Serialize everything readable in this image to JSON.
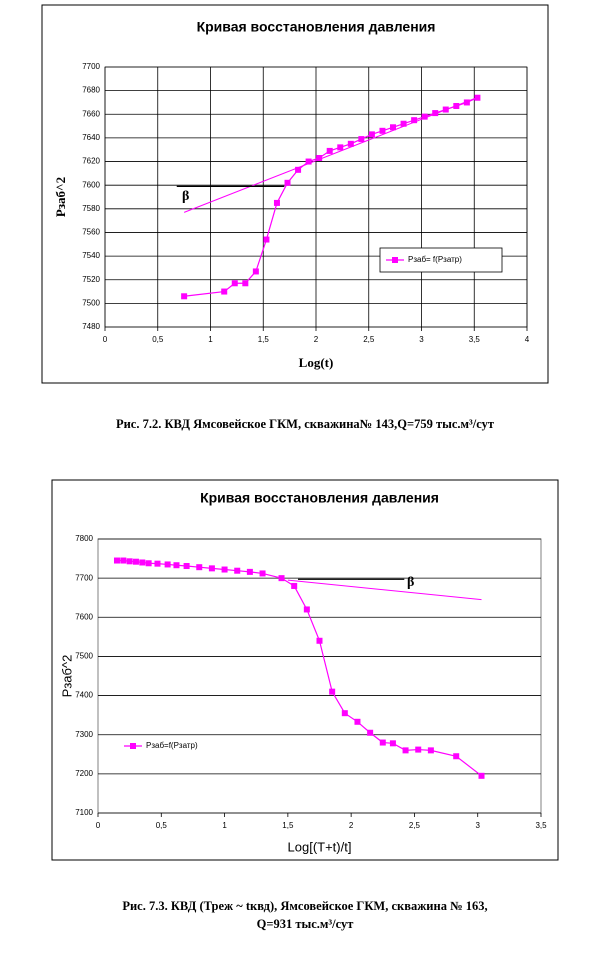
{
  "chart_data": [
    {
      "type": "line",
      "title": "Кривая восстановления давления",
      "x_label": "Log(t)",
      "y_label": "Pзаб^2",
      "x": [
        0.75,
        1.13,
        1.23,
        1.33,
        1.43,
        1.53,
        1.63,
        1.73,
        1.83,
        1.93,
        2.03,
        2.13,
        2.23,
        2.33,
        2.43,
        2.53,
        2.63,
        2.73,
        2.83,
        2.93,
        3.03,
        3.13,
        3.23,
        3.33,
        3.43,
        3.53
      ],
      "series": [
        {
          "name": "Pзаб= f(Pзатр)",
          "color": "#ff00ff",
          "values": [
            7506,
            7510,
            7517,
            7517,
            7527,
            7554,
            7585,
            7602,
            7613,
            7620,
            7623,
            7629,
            7632,
            7635,
            7639,
            7643,
            7646,
            7649,
            7652,
            7655,
            7658,
            7661,
            7664,
            7667,
            7670,
            7674
          ]
        }
      ],
      "trendline": {
        "x": [
          0.75,
          3.55
        ],
        "y": [
          7577,
          7675
        ]
      },
      "hline": {
        "x": [
          0.68,
          1.7
        ],
        "y": 7599
      },
      "annotation": "β",
      "xlim": [
        0,
        4
      ],
      "ylim": [
        7480,
        7700
      ],
      "xticks": [
        0,
        {
          "value": 0.5,
          "label": "0,5"
        },
        1,
        {
          "value": 1.5,
          "label": "1,5"
        },
        2,
        {
          "value": 2.5,
          "label": "2,5"
        },
        3,
        {
          "value": 3.5,
          "label": "3,5"
        },
        4
      ],
      "yticks": [
        7480,
        7500,
        7520,
        7540,
        7560,
        7580,
        7600,
        7620,
        7640,
        7660,
        7680,
        7700
      ],
      "grid": true,
      "grid_x": true,
      "legend": "lower right"
    },
    {
      "type": "line",
      "title": "Кривая восстановления давления",
      "x_label": "Log[(T+t)/t]",
      "y_label": "Pзаб^2",
      "x": [
        0.15,
        0.2,
        0.25,
        0.3,
        0.35,
        0.4,
        0.47,
        0.55,
        0.62,
        0.7,
        0.8,
        0.9,
        1.0,
        1.1,
        1.2,
        1.3,
        1.45,
        1.55,
        1.65,
        1.75,
        1.85,
        1.95,
        2.05,
        2.15,
        2.25,
        2.33,
        2.43,
        2.53,
        2.63,
        2.83,
        3.03
      ],
      "series": [
        {
          "name": "Pзаб=f(Pзатр)",
          "color": "#ff00ff",
          "values": [
            7745,
            7745,
            7743,
            7742,
            7740,
            7738,
            7737,
            7735,
            7733,
            7731,
            7728,
            7725,
            7722,
            7719,
            7716,
            7712,
            7700,
            7680,
            7620,
            7540,
            7410,
            7355,
            7333,
            7305,
            7280,
            7278,
            7260,
            7262,
            7260,
            7245,
            7195
          ]
        }
      ],
      "trendline": {
        "x": [
          1.5,
          3.03
        ],
        "y": [
          7695,
          7645
        ]
      },
      "hline": {
        "x": [
          1.58,
          2.42
        ],
        "y": 7697
      },
      "annotation": "β",
      "xlim": [
        0,
        3.5
      ],
      "ylim": [
        7100,
        7800
      ],
      "xticks": [
        0,
        {
          "value": 0.5,
          "label": "0,5"
        },
        1,
        {
          "value": 1.5,
          "label": "1,5"
        },
        2,
        {
          "value": 2.5,
          "label": "2,5"
        },
        3,
        {
          "value": 3.5,
          "label": "3,5"
        }
      ],
      "yticks": [
        7100,
        7200,
        7300,
        7400,
        7500,
        7600,
        7700,
        7800
      ],
      "grid": true,
      "grid_x": false,
      "legend": "lower left"
    }
  ],
  "captions": [
    [
      "Рис. 7.2.   КВД Ямсовейское ГКМ, скважина№ 143,Q=759 тыс.м³/сут"
    ],
    [
      "Рис. 7.3.  КВД (Треж ~ tквд), Ямсовейское ГКМ, скважина № 163,",
      "Q=931 тыс.м³/сут"
    ]
  ]
}
